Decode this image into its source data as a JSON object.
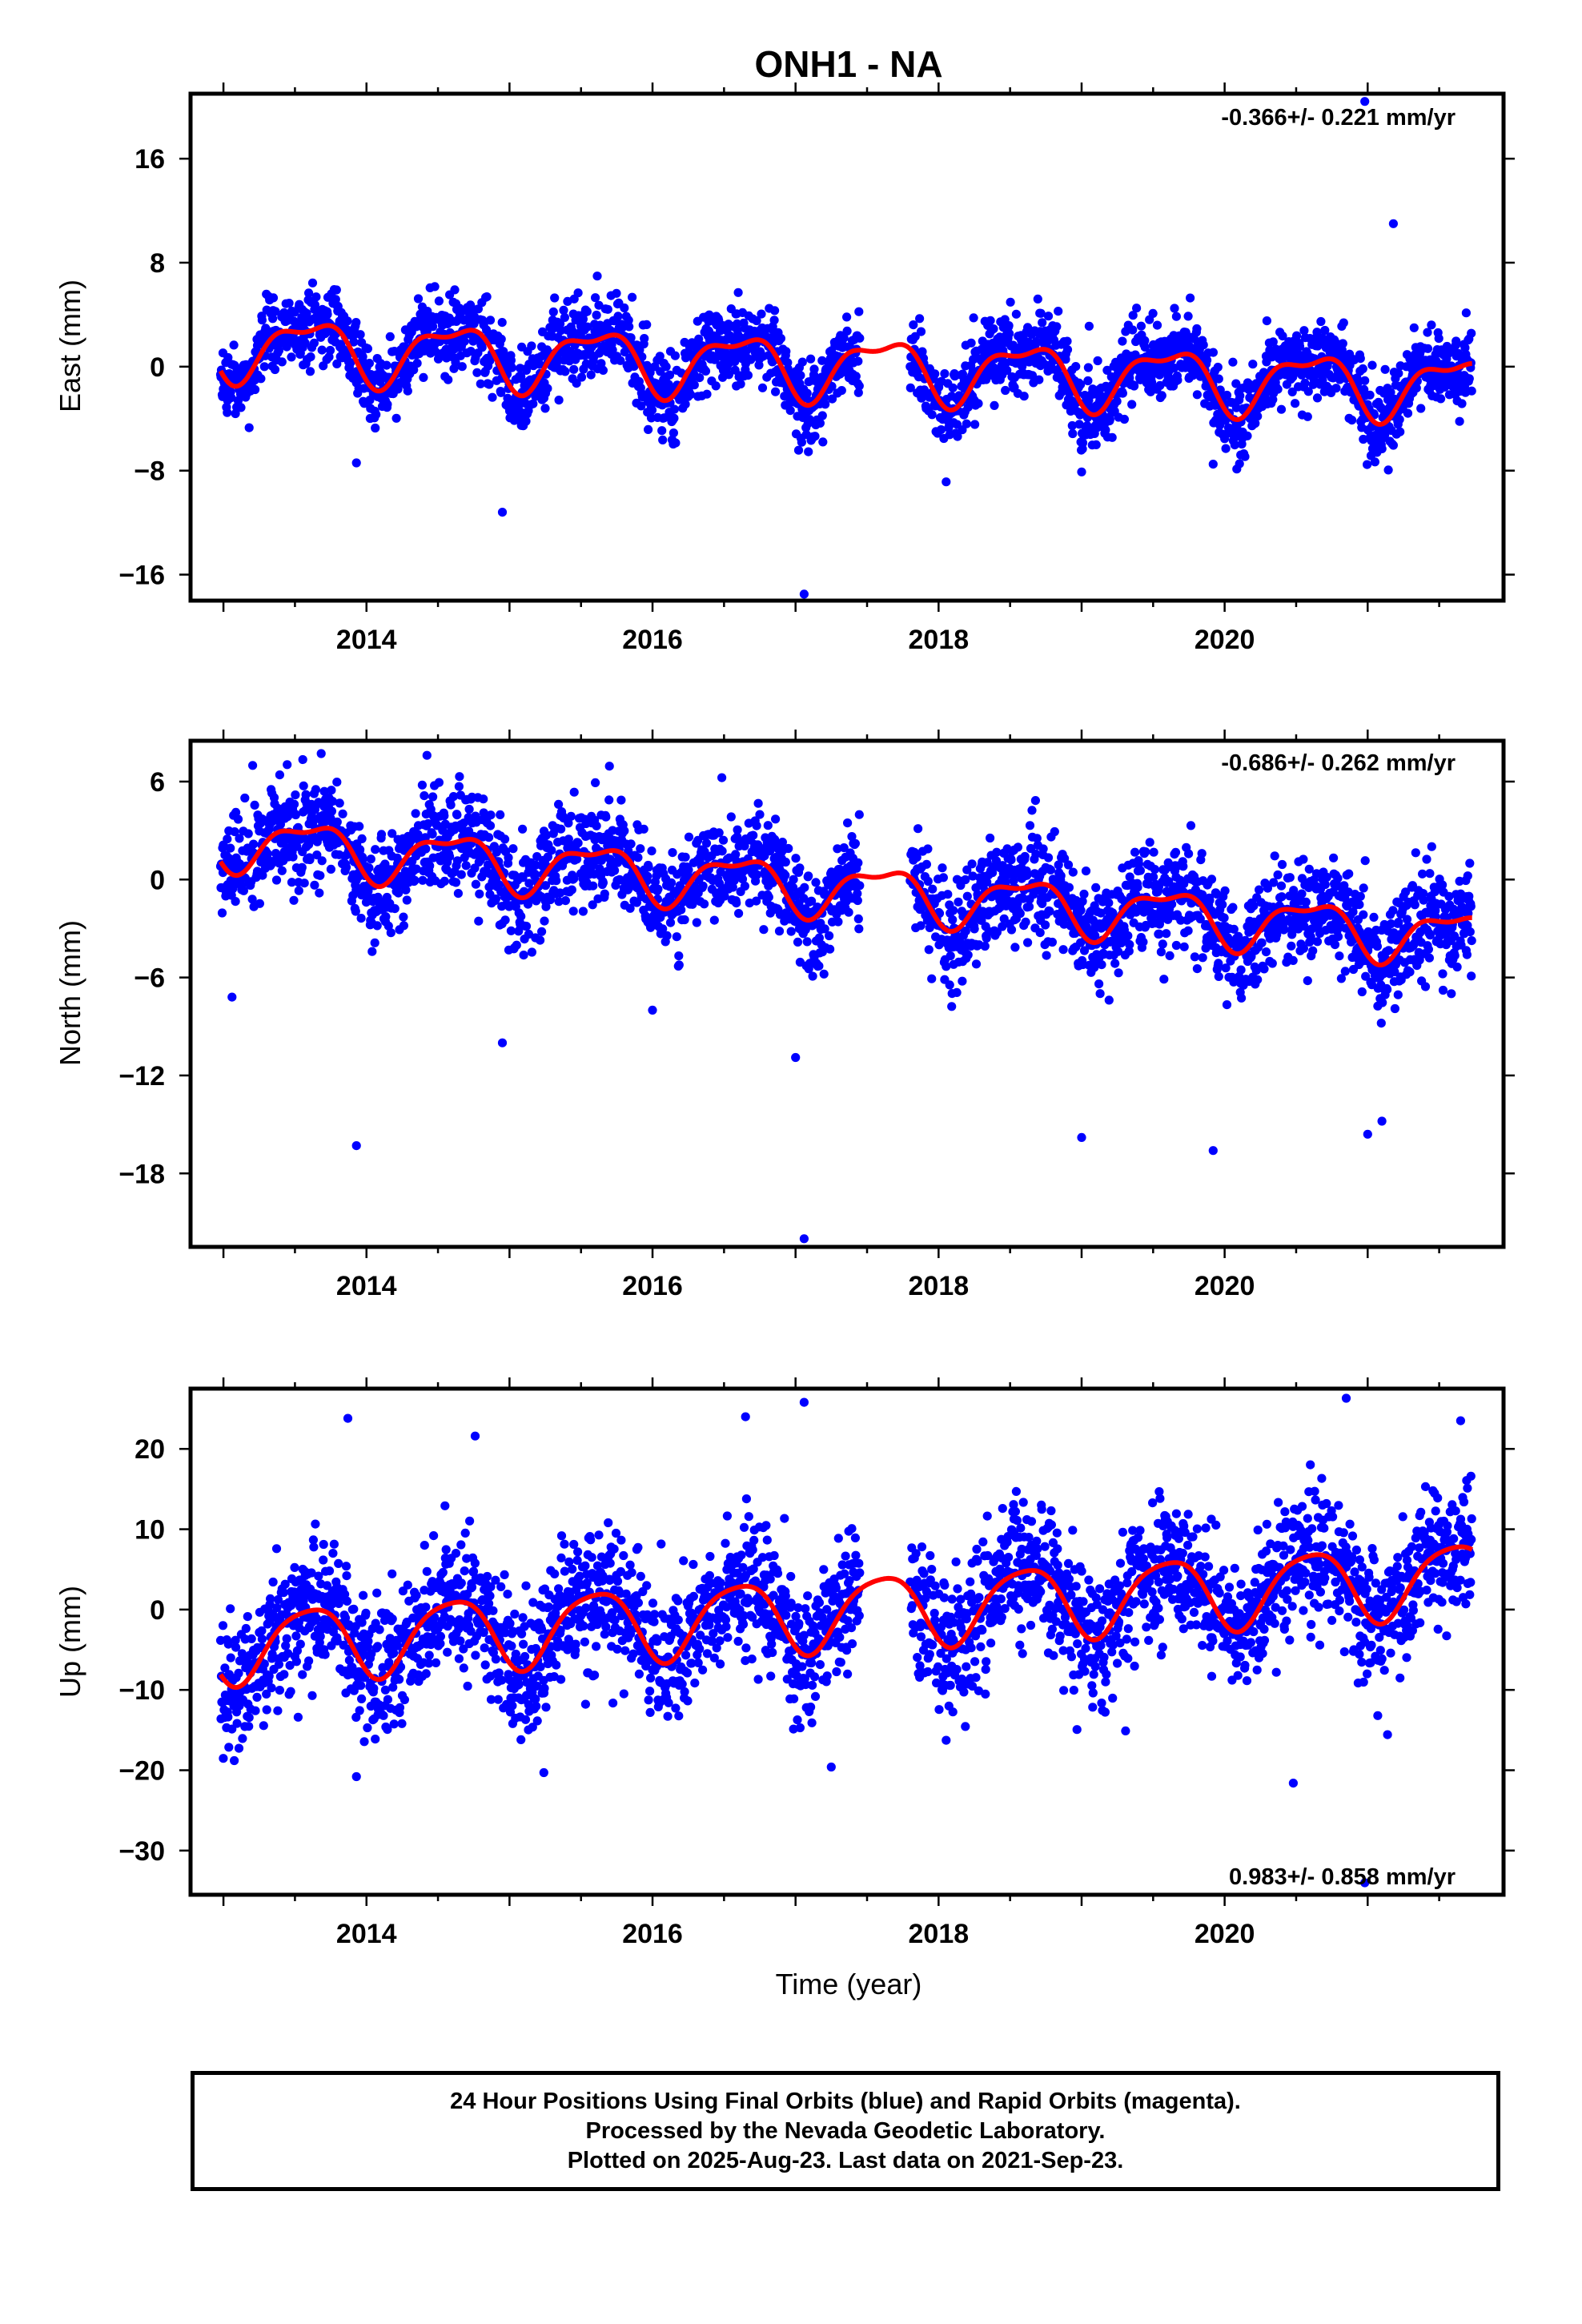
{
  "title": "ONH1 - NA",
  "xlabel": "Time (year)",
  "caption": [
    "24 Hour Positions Using Final Orbits (blue) and Rapid Orbits (magenta).",
    "Processed by the Nevada Geodetic Laboratory.",
    "Plotted on 2025-Aug-23. Last data on 2021-Sep-23."
  ],
  "colors": {
    "data": "#0000ff",
    "model": "#ff0000",
    "frame": "#000000"
  },
  "chart_data": [
    {
      "type": "scatter",
      "ylabel": "East (mm)",
      "rate_label": "-0.366+/- 0.221 mm/yr",
      "xlim": [
        2012.77,
        2021.95
      ],
      "ylim": [
        -18.0,
        21.0
      ],
      "xticks": [
        2014,
        2016,
        2018,
        2020
      ],
      "xtick_labels": [
        "2014",
        "2016",
        "2018",
        "2020"
      ],
      "yticks": [
        -16,
        -8,
        0,
        8,
        16
      ],
      "ytick_labels": [
        "−16",
        "−8",
        "0",
        "8",
        "16"
      ],
      "gap": [
        2017.45,
        2017.8
      ],
      "series": [
        {
          "kind": "daily positions",
          "trend_mm_per_yr": -0.366,
          "offset_mm": 1.6,
          "annual_amp_mm": 2.2,
          "semiannual_amp_mm": 0.9,
          "scatter_mm": 1.5
        },
        {
          "kind": "model fit",
          "trend_mm_per_yr": -0.366,
          "offset_mm": 1.6,
          "annual_amp_mm": 2.2,
          "semiannual_amp_mm": 0.9
        }
      ],
      "outliers": [
        [
          2020.98,
          20.4
        ],
        [
          2021.18,
          11.0
        ],
        [
          2014.95,
          -11.2
        ],
        [
          2017.06,
          -17.5
        ],
        [
          2013.93,
          -7.4
        ],
        [
          2019.0,
          -8.1
        ],
        [
          2019.92,
          -7.5
        ],
        [
          2013.18,
          -4.7
        ]
      ]
    },
    {
      "type": "scatter",
      "ylabel": "North (mm)",
      "rate_label": "-0.686+/- 0.262 mm/yr",
      "xlim": [
        2012.77,
        2021.95
      ],
      "ylim": [
        -22.5,
        8.5
      ],
      "xticks": [
        2014,
        2016,
        2018,
        2020
      ],
      "xtick_labels": [
        "2014",
        "2016",
        "2018",
        "2020"
      ],
      "yticks": [
        -18,
        -12,
        -6,
        0,
        6
      ],
      "ytick_labels": [
        "−18",
        "−12",
        "−6",
        "0",
        "6"
      ],
      "gap": [
        2017.45,
        2017.8
      ],
      "series": [
        {
          "kind": "daily positions",
          "trend_mm_per_yr": -0.686,
          "offset_mm": 2.4,
          "annual_amp_mm": 1.5,
          "semiannual_amp_mm": 0.6,
          "scatter_mm": 1.6
        },
        {
          "kind": "model fit",
          "trend_mm_per_yr": -0.686,
          "offset_mm": 2.4,
          "annual_amp_mm": 1.5,
          "semiannual_amp_mm": 0.6
        }
      ],
      "outliers": [
        [
          2013.93,
          -16.3
        ],
        [
          2014.95,
          -10.0
        ],
        [
          2017.06,
          -22.0
        ],
        [
          2019.0,
          -15.8
        ],
        [
          2019.92,
          -16.6
        ],
        [
          2021.0,
          -15.6
        ],
        [
          2021.1,
          -14.8
        ],
        [
          2013.06,
          -7.2
        ],
        [
          2016.0,
          -8.0
        ],
        [
          2017.0,
          -10.9
        ]
      ]
    },
    {
      "type": "scatter",
      "ylabel": "Up (mm)",
      "rate_label": "0.983+/- 0.858 mm/yr",
      "xlim": [
        2012.77,
        2021.95
      ],
      "ylim": [
        -35.5,
        27.5
      ],
      "xticks": [
        2014,
        2016,
        2018,
        2020
      ],
      "xtick_labels": [
        "2014",
        "2016",
        "2018",
        "2020"
      ],
      "yticks": [
        -30,
        -20,
        -10,
        0,
        10,
        20
      ],
      "ytick_labels": [
        "−30",
        "−20",
        "−10",
        "0",
        "10",
        "20"
      ],
      "gap": [
        2017.45,
        2017.8
      ],
      "series": [
        {
          "kind": "daily positions",
          "trend_mm_per_yr": 0.983,
          "offset_mm": -4.5,
          "annual_amp_mm": 4.5,
          "semiannual_amp_mm": 0.8,
          "scatter_mm": 4.2
        },
        {
          "kind": "model fit",
          "trend_mm_per_yr": 0.983,
          "offset_mm": -4.5,
          "annual_amp_mm": 4.5,
          "semiannual_amp_mm": 0.8
        }
      ],
      "outliers": [
        [
          2017.06,
          25.8
        ],
        [
          2020.85,
          26.3
        ],
        [
          2013.87,
          23.8
        ],
        [
          2016.65,
          24.0
        ],
        [
          2014.76,
          21.6
        ],
        [
          2013.93,
          -20.8
        ],
        [
          2015.24,
          -20.3
        ],
        [
          2020.48,
          -21.6
        ],
        [
          2017.25,
          -19.6
        ],
        [
          2020.98,
          -34.0
        ],
        [
          2021.65,
          23.5
        ]
      ]
    }
  ]
}
